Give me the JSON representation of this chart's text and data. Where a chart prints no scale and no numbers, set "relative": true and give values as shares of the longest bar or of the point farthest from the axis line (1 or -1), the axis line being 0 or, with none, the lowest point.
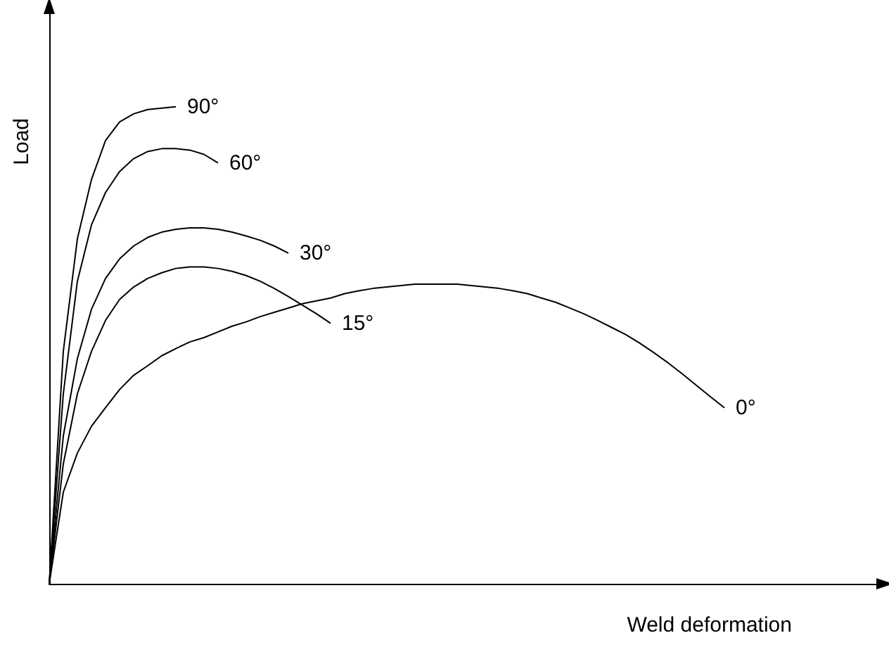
{
  "chart_data": {
    "type": "line",
    "relative": true,
    "xlabel": "Weld deformation",
    "ylabel": "Load",
    "marker": "none",
    "categories": [
      null,
      null,
      null,
      null,
      null,
      null,
      null,
      null,
      null,
      null,
      null,
      null,
      null,
      null,
      null,
      null,
      null,
      null,
      null,
      null,
      null,
      null,
      null,
      null,
      null,
      null,
      null,
      null,
      null,
      null,
      null,
      null,
      null,
      null,
      null,
      null,
      null,
      null,
      null,
      null,
      null,
      null,
      null,
      null,
      null,
      null,
      null,
      null,
      null
    ],
    "series": [
      {
        "name": "90°",
        "color": "#000000",
        "values": [
          0,
          0.487,
          0.723,
          0.847,
          0.929,
          0.968,
          0.985,
          0.994,
          0.997,
          1.0,
          null,
          null,
          null,
          null,
          null,
          null,
          null,
          null,
          null,
          null,
          null,
          null,
          null,
          null,
          null,
          null,
          null,
          null,
          null,
          null,
          null,
          null,
          null,
          null,
          null,
          null,
          null,
          null,
          null,
          null,
          null,
          null,
          null,
          null,
          null,
          null,
          null,
          null,
          null
        ]
      },
      {
        "name": "60°",
        "color": "#000000",
        "values": [
          0,
          0.398,
          0.634,
          0.752,
          0.82,
          0.864,
          0.891,
          0.906,
          0.912,
          0.912,
          0.909,
          0.9,
          0.882,
          null,
          null,
          null,
          null,
          null,
          null,
          null,
          null,
          null,
          null,
          null,
          null,
          null,
          null,
          null,
          null,
          null,
          null,
          null,
          null,
          null,
          null,
          null,
          null,
          null,
          null,
          null,
          null,
          null,
          null,
          null,
          null,
          null,
          null,
          null,
          null
        ]
      },
      {
        "name": "30°",
        "color": "#000000",
        "values": [
          0,
          0.31,
          0.472,
          0.575,
          0.64,
          0.681,
          0.708,
          0.726,
          0.737,
          0.743,
          0.746,
          0.746,
          0.743,
          0.737,
          0.729,
          0.72,
          0.708,
          0.693,
          null,
          null,
          null,
          null,
          null,
          null,
          null,
          null,
          null,
          null,
          null,
          null,
          null,
          null,
          null,
          null,
          null,
          null,
          null,
          null,
          null,
          null,
          null,
          null,
          null,
          null,
          null,
          null,
          null,
          null,
          null
        ]
      },
      {
        "name": "15°",
        "color": "#000000",
        "values": [
          0,
          0.251,
          0.398,
          0.487,
          0.552,
          0.596,
          0.622,
          0.64,
          0.652,
          0.661,
          0.664,
          0.664,
          0.661,
          0.655,
          0.646,
          0.634,
          0.619,
          0.602,
          0.584,
          0.566,
          0.546,
          null,
          null,
          null,
          null,
          null,
          null,
          null,
          null,
          null,
          null,
          null,
          null,
          null,
          null,
          null,
          null,
          null,
          null,
          null,
          null,
          null,
          null,
          null,
          null,
          null,
          null,
          null,
          null
        ]
      },
      {
        "name": "0°",
        "color": "#000000",
        "values": [
          0,
          0.192,
          0.274,
          0.33,
          0.369,
          0.407,
          0.437,
          0.457,
          0.478,
          0.493,
          0.507,
          0.516,
          0.528,
          0.54,
          0.549,
          0.56,
          0.569,
          0.578,
          0.587,
          0.593,
          0.599,
          0.608,
          0.614,
          0.619,
          0.622,
          0.625,
          0.628,
          0.628,
          0.628,
          0.628,
          0.625,
          0.622,
          0.619,
          0.614,
          0.608,
          0.599,
          0.59,
          0.578,
          0.566,
          0.552,
          0.537,
          0.522,
          0.504,
          0.484,
          0.463,
          0.44,
          0.416,
          0.392,
          0.369
        ]
      }
    ]
  }
}
